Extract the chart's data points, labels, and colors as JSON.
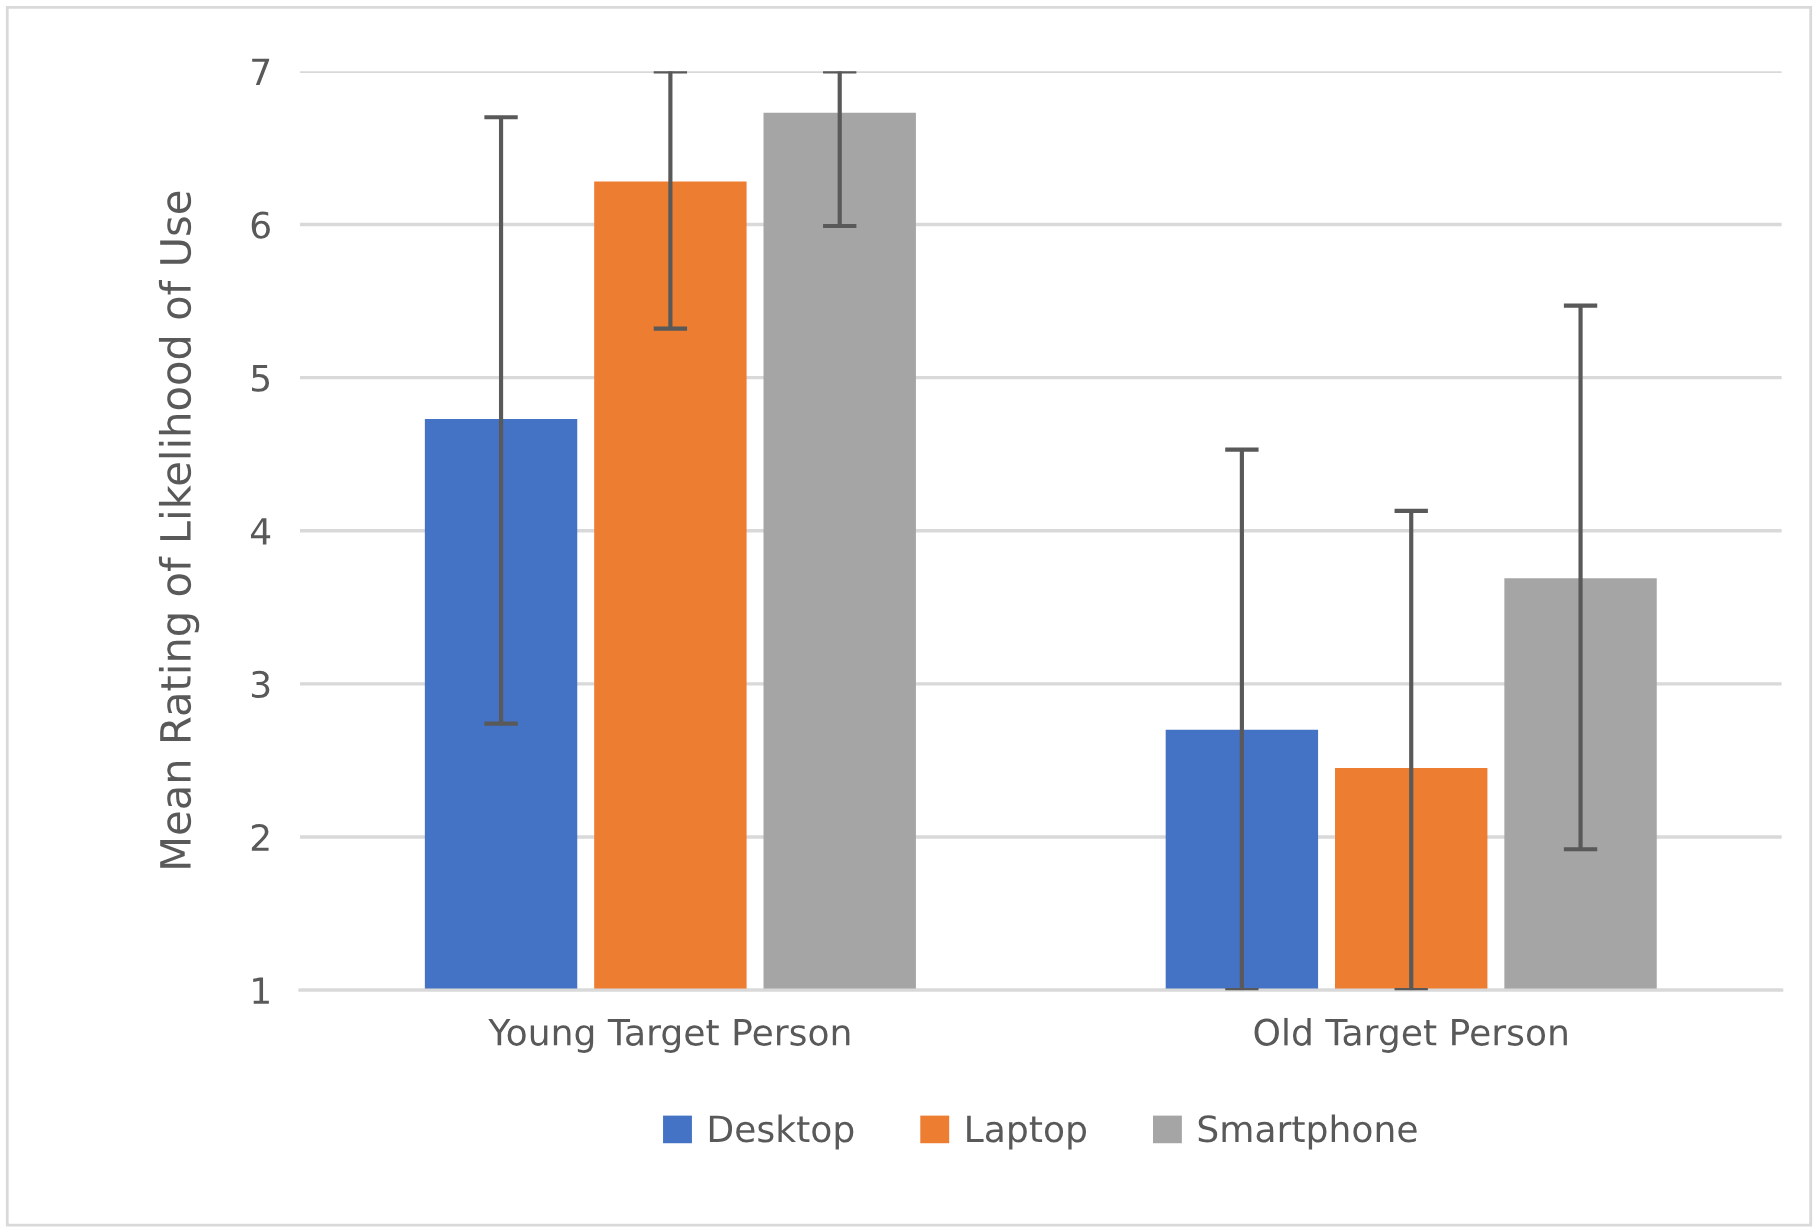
{
  "chart_data": {
    "type": "bar",
    "ylabel": "Mean Rating of Likelihood of Use",
    "categories": [
      "Young Target Person",
      "Old Target Person"
    ],
    "series": [
      {
        "name": "Desktop",
        "color": "#4472c4",
        "values": [
          4.73,
          2.7
        ],
        "errors": [
          [
            2.74,
            6.7
          ],
          [
            1,
            4.53
          ]
        ]
      },
      {
        "name": "Laptop",
        "color": "#ed7d31",
        "values": [
          6.28,
          2.45
        ],
        "errors": [
          [
            5.32,
            7
          ],
          [
            1,
            4.13
          ]
        ]
      },
      {
        "name": "Smartphone",
        "color": "#a5a5a5",
        "values": [
          6.73,
          3.69
        ],
        "errors": [
          [
            5.99,
            7
          ],
          [
            1.92,
            5.47
          ]
        ]
      }
    ],
    "ylim": [
      1,
      7
    ],
    "yticks": [
      1,
      2,
      3,
      4,
      5,
      6,
      7
    ],
    "grid": "y",
    "legend": "bottom"
  }
}
